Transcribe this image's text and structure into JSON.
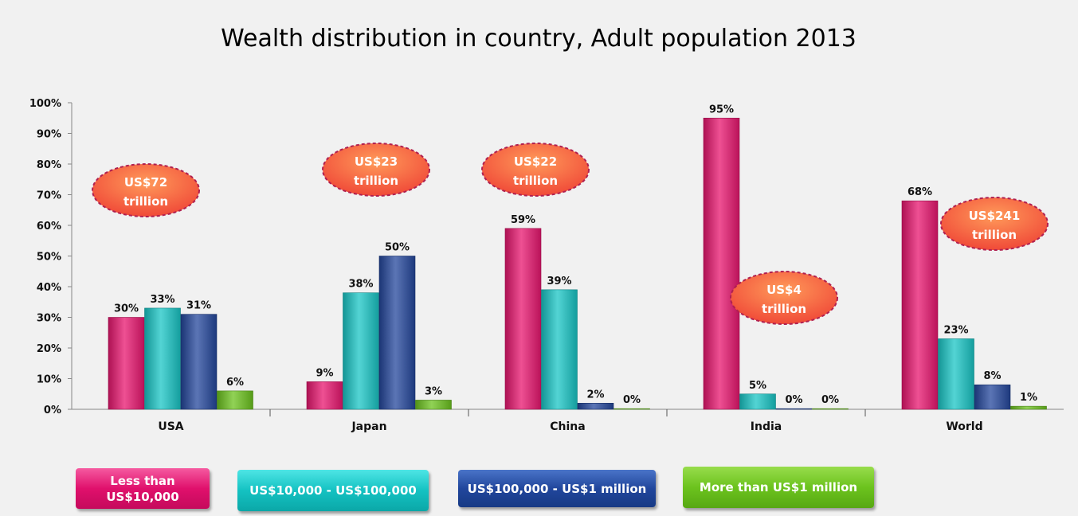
{
  "chart_data": {
    "type": "bar",
    "title": "Wealth distribution in country, Adult population 2013",
    "xlabel": "",
    "ylabel": "",
    "ylim": [
      0,
      100
    ],
    "yticks": [
      "0%",
      "10%",
      "20%",
      "30%",
      "40%",
      "50%",
      "60%",
      "70%",
      "80%",
      "90%",
      "100%"
    ],
    "categories": [
      "USA",
      "Japan",
      "China",
      "India",
      "World"
    ],
    "series": [
      {
        "name": "Less than US$10,000",
        "legend_lines": [
          "Less than",
          "US$10,000"
        ],
        "color": "#e8166f",
        "values": [
          30,
          9,
          59,
          95,
          68
        ],
        "labels": [
          "30%",
          "9%",
          "59%",
          "95%",
          "68%"
        ]
      },
      {
        "name": "US$10,000 - US$100,000",
        "legend_lines": [
          "US$10,000 - US$100,000"
        ],
        "color": "#19c6c6",
        "values": [
          33,
          38,
          39,
          5,
          23
        ],
        "labels": [
          "33%",
          "38%",
          "39%",
          "5%",
          "23%"
        ]
      },
      {
        "name": "US$100,000 - US$1 million",
        "legend_lines": [
          "US$100,000 - US$1 million"
        ],
        "color": "#24479c",
        "values": [
          31,
          50,
          2,
          0,
          8
        ],
        "labels": [
          "31%",
          "50%",
          "2%",
          "0%",
          "8%"
        ]
      },
      {
        "name": "More than US$1 million",
        "legend_lines": [
          "More than US$1 million"
        ],
        "color": "#6cc31e",
        "values": [
          6,
          3,
          0,
          0,
          1
        ],
        "labels": [
          "6%",
          "3%",
          "0%",
          "0%",
          "1%"
        ]
      }
    ],
    "annotations": [
      {
        "category": "USA",
        "lines": [
          "US$72",
          "trillion"
        ]
      },
      {
        "category": "Japan",
        "lines": [
          "US$23",
          "trillion"
        ]
      },
      {
        "category": "China",
        "lines": [
          "US$22",
          "trillion"
        ]
      },
      {
        "category": "India",
        "lines": [
          "US$4",
          "trillion"
        ]
      },
      {
        "category": "World",
        "lines": [
          "US$241",
          "trillion"
        ]
      }
    ],
    "grid": false,
    "legend": "bottom"
  }
}
